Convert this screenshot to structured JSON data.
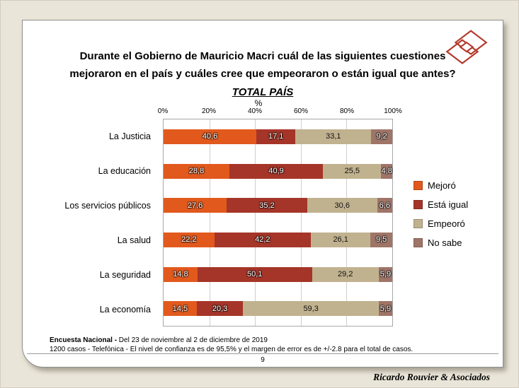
{
  "slide": {
    "title_line1": "Durante el Gobierno de Mauricio Macri cuál de las siguientes cuestiones",
    "title_line2": "mejoraron en el país y cuáles cree que empeoraron o están igual que antes?",
    "subtitle": "TOTAL PAÍS",
    "page_number": "9",
    "brand": "Ricardo Rouvier & Asociados",
    "footer": {
      "line1_bold": "Encuesta Nacional -",
      "line1_rest": " Del 23 de noviembre al 2 de diciembre de 2019",
      "line2": "1200 casos - Telefónica  - El nivel de confianza es de 95,5% y el margen de error es de +/-2.8 para el total de casos."
    },
    "logo_color": "#B23A2B"
  },
  "chart_data": {
    "type": "bar",
    "stacked": true,
    "orientation": "horizontal",
    "percent_label": "%",
    "x_ticks": [
      "0%",
      "20%",
      "40%",
      "60%",
      "80%",
      "100%"
    ],
    "xlim": [
      0,
      100
    ],
    "grid": true,
    "legend_position": "right",
    "categories": [
      "La Justicia",
      "La educación",
      "Los servicios públicos",
      "La salud",
      "La seguridad",
      "La economía"
    ],
    "series": [
      {
        "name": "Mejoró",
        "color": "#E2591D",
        "label_style": "light",
        "values": [
          40.6,
          28.8,
          27.6,
          22.2,
          14.8,
          14.5
        ]
      },
      {
        "name": "Está igual",
        "color": "#A53528",
        "label_style": "light",
        "values": [
          17.1,
          40.9,
          35.2,
          42.2,
          50.1,
          20.3
        ]
      },
      {
        "name": "Empeoró",
        "color": "#C1B28F",
        "label_style": "dark",
        "values": [
          33.1,
          25.5,
          30.6,
          26.1,
          29.2,
          59.3
        ]
      },
      {
        "name": "No sabe",
        "color": "#9F7568",
        "label_style": "light",
        "values": [
          9.2,
          4.8,
          6.6,
          9.5,
          5.9,
          5.9
        ]
      }
    ]
  }
}
